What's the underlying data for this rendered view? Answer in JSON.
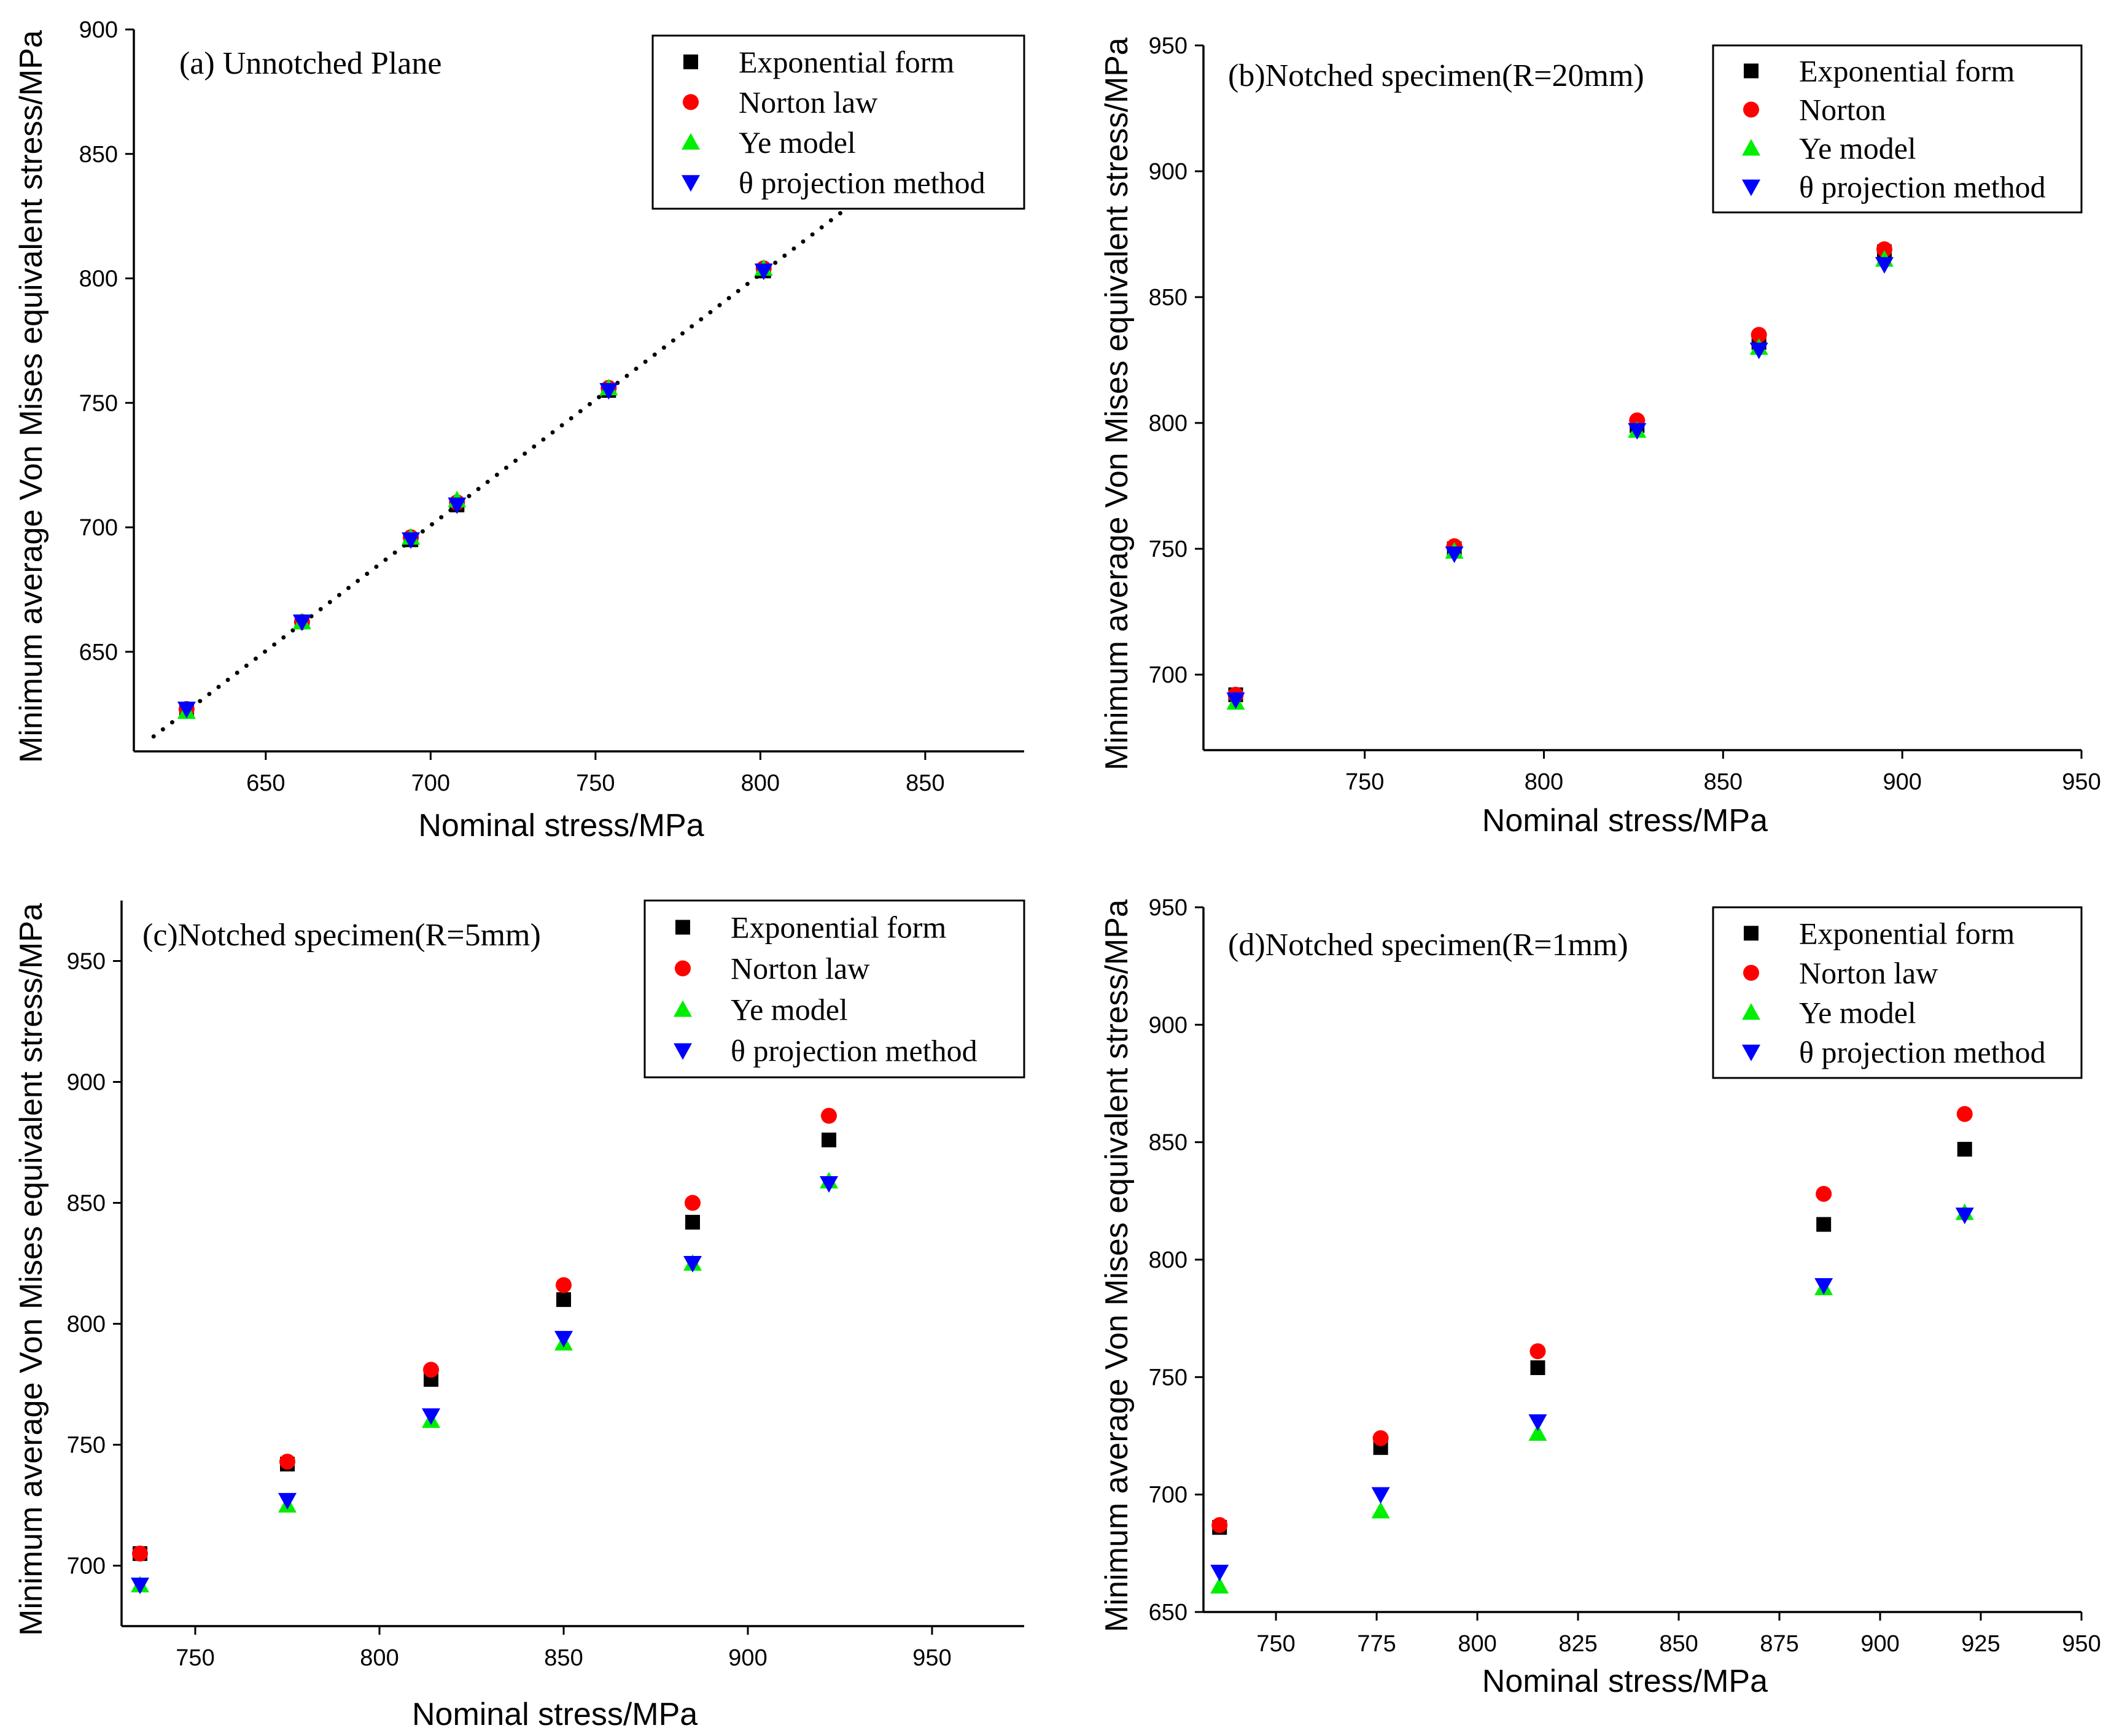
{
  "colors": {
    "exponential": "#000000",
    "norton": "#ff0000",
    "ye": "#00ee00",
    "theta": "#0000ff"
  },
  "chart_data": [
    {
      "type": "scatter",
      "title": "(a) Unnotched Plane",
      "xlabel": "Nominal stress/MPa",
      "ylabel": "Minimum average Von Mises equivalent stress/MPa",
      "xlim": [
        610,
        880
      ],
      "ylim": [
        610,
        900
      ],
      "xticks": [
        650,
        700,
        750,
        800,
        850
      ],
      "yticks": [
        650,
        700,
        750,
        800,
        850,
        900
      ],
      "legend_position": "top-right",
      "trendline": {
        "style": "dotted",
        "from": [
          616,
          616
        ],
        "to": [
          830,
          832
        ]
      },
      "series": [
        {
          "name": "Exponential form",
          "marker": "square",
          "points": [
            [
              626,
              626
            ],
            [
              661,
              662
            ],
            [
              694,
              695
            ],
            [
              708,
              709
            ],
            [
              754,
              755
            ],
            [
              801,
              803
            ]
          ]
        },
        {
          "name": "Norton law",
          "marker": "circle",
          "points": [
            [
              626,
              627
            ],
            [
              661,
              662
            ],
            [
              694,
              696
            ],
            [
              708,
              710
            ],
            [
              754,
              756
            ],
            [
              801,
              804
            ]
          ]
        },
        {
          "name": "Ye model",
          "marker": "triangle-up",
          "points": [
            [
              626,
              626
            ],
            [
              661,
              662
            ],
            [
              694,
              696
            ],
            [
              708,
              711
            ],
            [
              754,
              756
            ],
            [
              801,
              804
            ]
          ]
        },
        {
          "name": "θ projection method",
          "marker": "triangle-down",
          "points": [
            [
              626,
              627
            ],
            [
              661,
              662
            ],
            [
              694,
              695
            ],
            [
              708,
              709
            ],
            [
              754,
              755
            ],
            [
              801,
              803
            ]
          ]
        }
      ]
    },
    {
      "type": "scatter",
      "title": "(b)Notched specimen(R=20mm)",
      "xlabel": "Nominal stress/MPa",
      "ylabel": "Minimum average Von Mises equivalent stress/MPa",
      "xlim": [
        705,
        950
      ],
      "ylim": [
        670,
        950
      ],
      "xticks": [
        750,
        800,
        850,
        900,
        950
      ],
      "yticks": [
        700,
        750,
        800,
        850,
        900,
        950
      ],
      "legend_position": "top-right",
      "series": [
        {
          "name": "Exponential form",
          "marker": "square",
          "points": [
            [
              714,
              692
            ],
            [
              775,
              750
            ],
            [
              826,
              799
            ],
            [
              860,
              832
            ],
            [
              895,
              868
            ]
          ]
        },
        {
          "name": "Norton",
          "marker": "circle",
          "points": [
            [
              714,
              692
            ],
            [
              775,
              751
            ],
            [
              826,
              801
            ],
            [
              860,
              835
            ],
            [
              895,
              869
            ]
          ]
        },
        {
          "name": "Ye model",
          "marker": "triangle-up",
          "points": [
            [
              714,
              689
            ],
            [
              775,
              749
            ],
            [
              826,
              797
            ],
            [
              860,
              830
            ],
            [
              895,
              865
            ]
          ]
        },
        {
          "name": "θ projection method",
          "marker": "triangle-down",
          "points": [
            [
              714,
              690
            ],
            [
              775,
              748
            ],
            [
              826,
              797
            ],
            [
              860,
              829
            ],
            [
              895,
              863
            ]
          ]
        }
      ]
    },
    {
      "type": "scatter",
      "title": "(c)Notched specimen(R=5mm)",
      "xlabel": "Nominal stress/MPa",
      "ylabel": "Minimum average Von Mises equivalent stress/MPa",
      "xlim": [
        730,
        975
      ],
      "ylim": [
        675,
        975
      ],
      "xticks": [
        750,
        800,
        850,
        900,
        950
      ],
      "yticks": [
        700,
        750,
        800,
        850,
        900,
        950
      ],
      "legend_position": "top-right",
      "series": [
        {
          "name": "Exponential form",
          "marker": "square",
          "points": [
            [
              735,
              705
            ],
            [
              775,
              742
            ],
            [
              814,
              777
            ],
            [
              850,
              810
            ],
            [
              885,
              842
            ],
            [
              922,
              876
            ]
          ]
        },
        {
          "name": "Norton law",
          "marker": "circle",
          "points": [
            [
              735,
              705
            ],
            [
              775,
              743
            ],
            [
              814,
              781
            ],
            [
              850,
              816
            ],
            [
              885,
              850
            ],
            [
              922,
              886
            ]
          ]
        },
        {
          "name": "Ye model",
          "marker": "triangle-up",
          "points": [
            [
              735,
              692
            ],
            [
              775,
              725
            ],
            [
              814,
              760
            ],
            [
              850,
              792
            ],
            [
              885,
              825
            ],
            [
              922,
              859
            ]
          ]
        },
        {
          "name": "θ projection method",
          "marker": "triangle-down",
          "points": [
            [
              735,
              692
            ],
            [
              775,
              727
            ],
            [
              814,
              762
            ],
            [
              850,
              794
            ],
            [
              885,
              825
            ],
            [
              922,
              858
            ]
          ]
        }
      ]
    },
    {
      "type": "scatter",
      "title": "(d)Notched specimen(R=1mm)",
      "xlabel": "Nominal stress/MPa",
      "ylabel": "Minimum average Von Mises equivalent stress/MPa",
      "xlim": [
        732,
        950
      ],
      "ylim": [
        650,
        950
      ],
      "xticks": [
        750,
        775,
        800,
        825,
        850,
        875,
        900,
        925,
        950
      ],
      "yticks": [
        650,
        700,
        750,
        800,
        850,
        900,
        950
      ],
      "legend_position": "top-right",
      "series": [
        {
          "name": "Exponential form",
          "marker": "square",
          "points": [
            [
              736,
              686
            ],
            [
              776,
              720
            ],
            [
              815,
              754
            ],
            [
              886,
              815
            ],
            [
              921,
              847
            ]
          ]
        },
        {
          "name": "Norton law",
          "marker": "circle",
          "points": [
            [
              736,
              687
            ],
            [
              776,
              724
            ],
            [
              815,
              761
            ],
            [
              886,
              828
            ],
            [
              921,
              862
            ]
          ]
        },
        {
          "name": "Ye model",
          "marker": "triangle-up",
          "points": [
            [
              736,
              661
            ],
            [
              776,
              693
            ],
            [
              815,
              726
            ],
            [
              886,
              788
            ],
            [
              921,
              820
            ]
          ]
        },
        {
          "name": "θ projection method",
          "marker": "triangle-down",
          "points": [
            [
              736,
              667
            ],
            [
              776,
              700
            ],
            [
              815,
              731
            ],
            [
              886,
              789
            ],
            [
              921,
              819
            ]
          ]
        }
      ]
    }
  ]
}
